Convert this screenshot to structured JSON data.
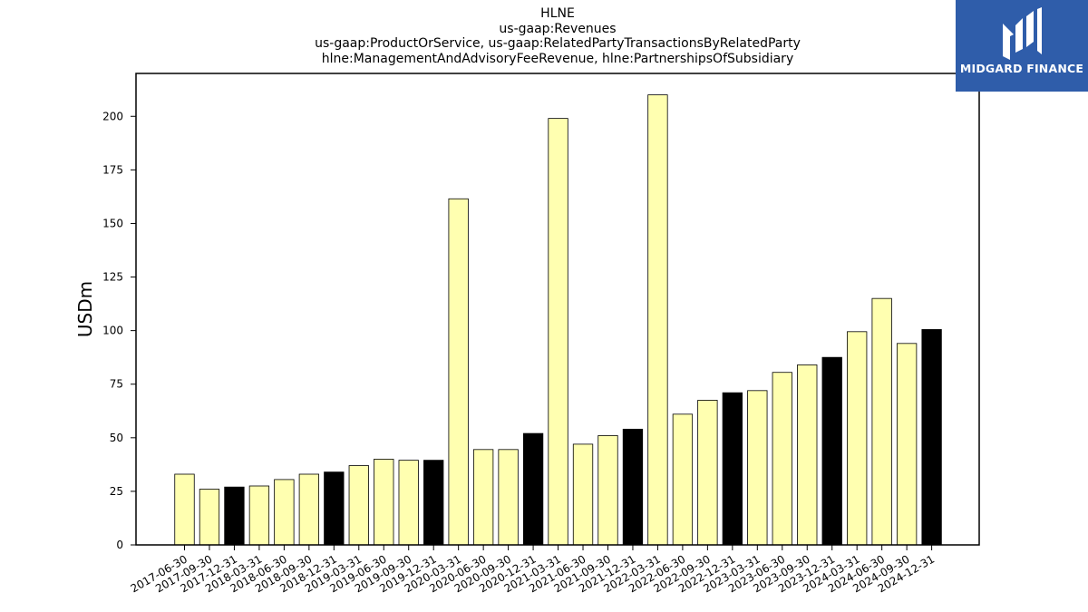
{
  "chart_data": {
    "type": "bar",
    "title_lines": [
      "HLNE",
      "us-gaap:Revenues",
      "us-gaap:ProductOrService, us-gaap:RelatedPartyTransactionsByRelatedParty",
      "hlne:ManagementAndAdvisoryFeeRevenue, hlne:PartnershipsOfSubsidiary"
    ],
    "ylabel": "USDm",
    "xlabel": "",
    "ylim": [
      0,
      220
    ],
    "yticks": [
      0,
      25,
      50,
      75,
      100,
      125,
      150,
      175,
      200
    ],
    "grid": false,
    "categories": [
      "2017-06-30",
      "2017-09-30",
      "2017-12-31",
      "2018-03-31",
      "2018-06-30",
      "2018-09-30",
      "2018-12-31",
      "2019-03-31",
      "2019-06-30",
      "2019-09-30",
      "2019-12-31",
      "2020-03-31",
      "2020-06-30",
      "2020-09-30",
      "2020-12-31",
      "2021-03-31",
      "2021-06-30",
      "2021-09-30",
      "2021-12-31",
      "2022-03-31",
      "2022-06-30",
      "2022-09-30",
      "2022-12-31",
      "2023-03-31",
      "2023-06-30",
      "2023-09-30",
      "2023-12-31",
      "2024-03-31",
      "2024-06-30",
      "2024-09-30",
      "2024-12-31"
    ],
    "values": [
      33,
      26,
      27,
      27.5,
      30.5,
      33,
      34,
      37,
      40,
      39.5,
      39.5,
      161.5,
      44.5,
      44.5,
      52,
      199,
      47,
      51,
      54,
      210,
      61,
      67.5,
      71,
      72,
      80.5,
      84,
      87.5,
      99.5,
      115,
      94,
      100.5
    ],
    "bar_colors": [
      "#ffffb0",
      "#ffffb0",
      "#000000",
      "#ffffb0",
      "#ffffb0",
      "#ffffb0",
      "#000000",
      "#ffffb0",
      "#ffffb0",
      "#ffffb0",
      "#000000",
      "#ffffb0",
      "#ffffb0",
      "#ffffb0",
      "#000000",
      "#ffffb0",
      "#ffffb0",
      "#ffffb0",
      "#000000",
      "#ffffb0",
      "#ffffb0",
      "#ffffb0",
      "#000000",
      "#ffffb0",
      "#ffffb0",
      "#ffffb0",
      "#000000",
      "#ffffb0",
      "#ffffb0",
      "#ffffb0",
      "#000000"
    ]
  },
  "logo": {
    "text": "MIDGARD FINANCE",
    "background": "#2f5daa"
  }
}
